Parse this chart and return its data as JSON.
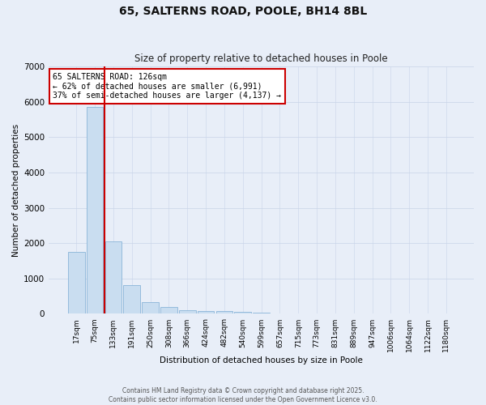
{
  "title": "65, SALTERNS ROAD, POOLE, BH14 8BL",
  "subtitle": "Size of property relative to detached houses in Poole",
  "xlabel": "Distribution of detached houses by size in Poole",
  "ylabel": "Number of detached properties",
  "bar_labels": [
    "17sqm",
    "75sqm",
    "133sqm",
    "191sqm",
    "250sqm",
    "308sqm",
    "366sqm",
    "424sqm",
    "482sqm",
    "540sqm",
    "599sqm",
    "657sqm",
    "715sqm",
    "773sqm",
    "831sqm",
    "889sqm",
    "947sqm",
    "1006sqm",
    "1064sqm",
    "1122sqm",
    "1180sqm"
  ],
  "bar_values": [
    1750,
    5850,
    2050,
    820,
    340,
    185,
    105,
    80,
    75,
    55,
    30,
    0,
    0,
    0,
    0,
    0,
    0,
    0,
    0,
    0,
    0
  ],
  "bar_color": "#c9ddf0",
  "bar_edgecolor": "#8ab4d8",
  "red_line_x": 1.5,
  "annotation_title": "65 SALTERNS ROAD: 126sqm",
  "annotation_line2": "← 62% of detached houses are smaller (6,991)",
  "annotation_line3": "37% of semi-detached houses are larger (4,137) →",
  "annotation_box_color": "#ffffff",
  "annotation_border_color": "#cc0000",
  "ylim": [
    0,
    7000
  ],
  "background_color": "#e8eef8",
  "grid_color": "#ffffff",
  "footer1": "Contains HM Land Registry data © Crown copyright and database right 2025.",
  "footer2": "Contains public sector information licensed under the Open Government Licence v3.0."
}
